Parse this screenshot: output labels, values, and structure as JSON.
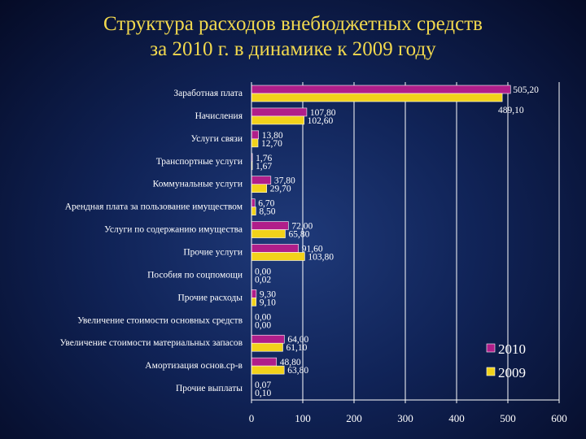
{
  "chart_data": {
    "type": "bar",
    "orientation": "horizontal",
    "title_lines": [
      "Структура расходов внебюджетных средств",
      "за 2010 г. в динамике к 2009 году"
    ],
    "categories": [
      "Заработная плата",
      "Начисления",
      "Услуги связи",
      "Транспортные услуги",
      "Коммунальные услуги",
      "Арендная плата за пользование имуществом",
      "Услуги по содержанию имущества",
      "Прочие услуги",
      "Пособия по соцпомощи",
      "Прочие расходы",
      "Увеличение стоимости основных средств",
      "Увеличение стоимости материальных запасов",
      "Амортизация основ.ср-в",
      "Прочие выплаты"
    ],
    "series": [
      {
        "name": "2010",
        "color": "#b01e8a",
        "values": [
          505.2,
          107.8,
          13.8,
          1.76,
          37.8,
          6.7,
          72.0,
          91.6,
          0.0,
          9.3,
          0.0,
          64.0,
          48.8,
          0.07
        ],
        "labels": [
          "505,20",
          "107,80",
          "13,80",
          "1,76",
          "37,80",
          "6,70",
          "72,00",
          "91,60",
          "0,00",
          "9,30",
          "0,00",
          "64,00",
          "48,80",
          "0,07"
        ]
      },
      {
        "name": "2009",
        "color": "#f2d21a",
        "values": [
          489.1,
          102.6,
          12.7,
          1.67,
          29.7,
          8.5,
          65.8,
          103.8,
          0.02,
          9.1,
          0.0,
          61.1,
          63.8,
          0.1
        ],
        "labels": [
          "489,10",
          "102,60",
          "12,70",
          "1,67",
          "29,70",
          "8,50",
          "65,80",
          "103,80",
          "0,02",
          "9,10",
          "0,00",
          "61,10",
          "63,80",
          "0,10"
        ]
      }
    ],
    "xlim": [
      0,
      600
    ],
    "xticks": [
      0,
      100,
      200,
      300,
      400,
      500,
      600
    ],
    "grid": true,
    "legend_position": "bottom-right"
  }
}
